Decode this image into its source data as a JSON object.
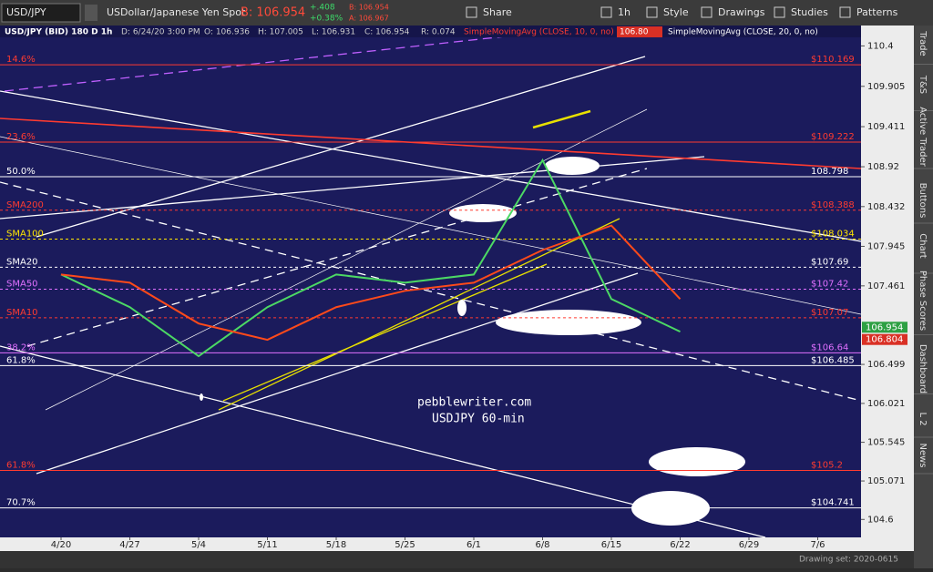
{
  "header": {
    "symbol": "USD/JPY",
    "description": "USDollar/Japanese Yen Spot",
    "bid": "B: 106.954",
    "change": "+.408",
    "change_pct": "+0.38%",
    "bid_small": "B: 106.954",
    "ask_small": "A: 106.967",
    "buttons": [
      "Share",
      "1h",
      "Style",
      "Drawings",
      "Studies",
      "Patterns"
    ]
  },
  "info_bar": {
    "instrument": "USD/JPY (BID) 180 D 1h",
    "date": "D: 6/24/20 3:00 PM",
    "open": "O: 106.936",
    "high": "H: 107.005",
    "low": "L: 106.931",
    "close": "C: 106.954",
    "range": "R: 0.074",
    "study1": "SimpleMovingAvg (CLOSE, 10, 0, no)",
    "study1_value": "106.80",
    "study2": "SimpleMovingAvg (CLOSE, 20, 0, no)"
  },
  "chart_data": {
    "type": "line",
    "annotations": [
      "pebblewriter.com",
      "USDJPY 60-min"
    ],
    "categories": [
      "4/20",
      "4/27",
      "5/4",
      "5/11",
      "5/18",
      "5/25",
      "6/1",
      "6/8",
      "6/15",
      "6/22",
      "6/29",
      "7/6"
    ],
    "series": [
      {
        "color": "#4cd964",
        "values": [
          107.6,
          107.2,
          106.6,
          107.2,
          107.6,
          107.5,
          107.6,
          109.0,
          107.3,
          106.9,
          null,
          null
        ]
      },
      {
        "color": "#ff4a1a",
        "values": [
          107.6,
          107.5,
          107.0,
          106.8,
          107.2,
          107.4,
          107.5,
          107.9,
          108.2,
          107.3,
          null,
          null
        ]
      }
    ],
    "ylim": [
      104.38,
      110.65
    ],
    "yticks": [
      110.4,
      109.905,
      109.411,
      108.92,
      108.432,
      107.945,
      107.461,
      106.499,
      106.021,
      105.545,
      105.071,
      104.6
    ],
    "levels": [
      {
        "label": "14.6%",
        "price": "$110.169",
        "value": 110.169,
        "color": "#ff3b30"
      },
      {
        "label": "23.6%",
        "price": "$109.222",
        "value": 109.222,
        "color": "#ff3b30"
      },
      {
        "label": "50.0%",
        "price": "108.798",
        "value": 108.798,
        "color": "#ffffff"
      },
      {
        "label": "SMA200",
        "price": "$108.388",
        "value": 108.388,
        "color": "#ff3b30"
      },
      {
        "label": "SMA100",
        "price": "$108.034",
        "value": 108.034,
        "color": "#ffe600"
      },
      {
        "label": "SMA20",
        "price": "$107.69",
        "value": 107.69,
        "color": "#ffffff"
      },
      {
        "label": "SMA50",
        "price": "$107.42",
        "value": 107.42,
        "color": "#e070ff"
      },
      {
        "label": "SMA10",
        "price": "$107.07",
        "value": 107.07,
        "color": "#ff3b30"
      },
      {
        "label": "38.2%",
        "price": "$106.64",
        "value": 106.64,
        "color": "#e070ff"
      },
      {
        "label": "61.8%",
        "price": "$106.485",
        "value": 106.485,
        "color": "#ffffff"
      },
      {
        "label": "61.8%",
        "price": "$105.2",
        "value": 105.2,
        "color": "#ff3b30"
      },
      {
        "label": "70.7%",
        "price": "$104.741",
        "value": 104.741,
        "color": "#ffffff"
      }
    ],
    "last_prices": [
      {
        "label": "106.954",
        "value": 106.954,
        "color": "#2ea043"
      },
      {
        "label": "106.804",
        "value": 106.804,
        "color": "#d93025"
      }
    ]
  },
  "side_tabs": [
    "Trade",
    "T&S",
    "Active Trader",
    "Buttons",
    "Chart",
    "Phase Scores",
    "Dashboard",
    "L 2",
    "News"
  ],
  "footer": {
    "drawing_set": "Drawing set: 2020-0615"
  }
}
